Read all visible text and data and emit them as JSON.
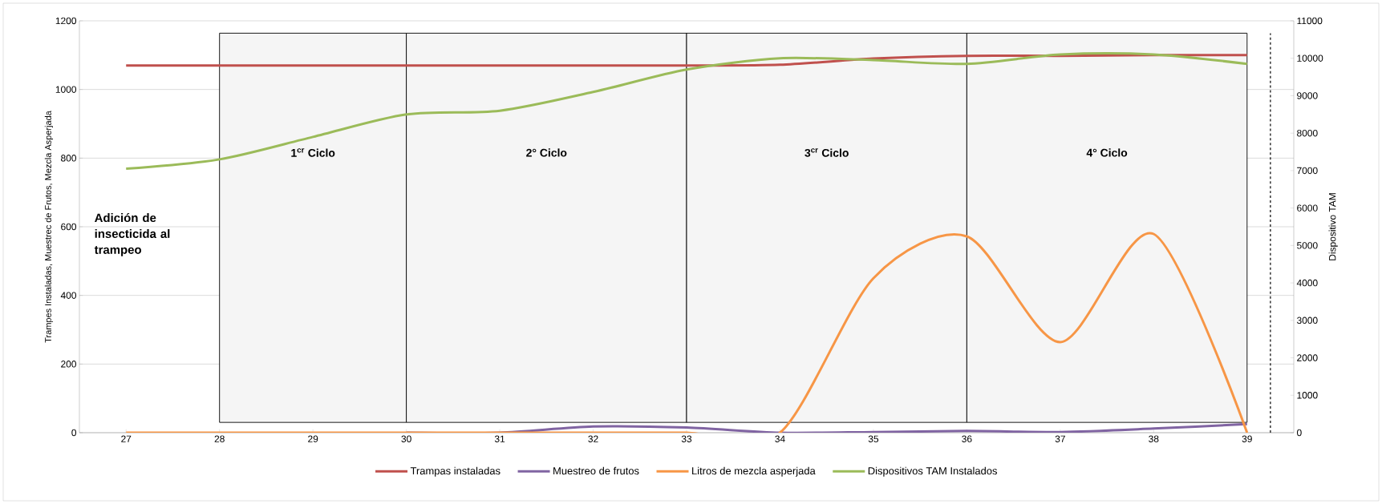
{
  "chart_data": {
    "type": "line",
    "ylabel": "Trampes Instaladas, Muestrec de Frutos, Mezcla Asperjada",
    "y2label": "Dispositivo TAM",
    "x": [
      27,
      28,
      29,
      30,
      31,
      32,
      33,
      34,
      35,
      36,
      37,
      38,
      39
    ],
    "xlim": [
      26.5,
      39.5
    ],
    "xticks": [
      27,
      28,
      29,
      30,
      31,
      32,
      33,
      34,
      35,
      36,
      37,
      38,
      39
    ],
    "ylim": [
      0,
      1200
    ],
    "yticks": [
      0,
      200,
      400,
      600,
      800,
      1000,
      1200
    ],
    "y2lim": [
      0,
      11000
    ],
    "y2ticks": [
      0,
      1000,
      2000,
      3000,
      4000,
      5000,
      6000,
      7000,
      8000,
      9000,
      10000,
      11000
    ],
    "series": [
      {
        "name": "Trampas instaladas",
        "color": "#c0504d",
        "values": [
          1070,
          1070,
          1070,
          1070,
          1070,
          1070,
          1070,
          1072,
          1090,
          1098,
          1098,
          1100,
          1100
        ]
      },
      {
        "name": "Muestreo de frutos",
        "color": "#8064a2",
        "values": [
          null,
          null,
          null,
          0,
          0,
          18,
          15,
          0,
          2,
          5,
          2,
          12,
          25
        ]
      },
      {
        "name": "Litros de mezcla asperjada",
        "color": "#f79646",
        "values": [
          0,
          0,
          0,
          0,
          0,
          0,
          0,
          0,
          450,
          572,
          264,
          579,
          0
        ]
      },
      {
        "name": "Dispositivos TAM Instalados",
        "color": "#9bbb59",
        "axis": "y2",
        "values": [
          7050,
          7300,
          7900,
          8500,
          8600,
          9100,
          9700,
          10000,
          9950,
          9850,
          10100,
          10100,
          9850
        ]
      }
    ],
    "bands": [
      {
        "axis": "x",
        "from": 28,
        "to": 30,
        "label": "1$^{cr}$ Ciclo",
        "color": "#f5f5f5"
      },
      {
        "axis": "x",
        "from": 30,
        "to": 33,
        "label": "2° Ciclo",
        "color": "#f5f5f5"
      },
      {
        "axis": "x",
        "from": 33,
        "to": 36,
        "label": "3$^{cr}$ Ciclo",
        "color": "#f5f5f5"
      },
      {
        "axis": "x",
        "from": 36,
        "to": 39,
        "label": "4° Ciclo",
        "color": "#f5f5f5"
      }
    ],
    "ref_lines": [
      {
        "axis": "x",
        "value": 39.25,
        "color": "#000000",
        "line_style": "dashed"
      }
    ],
    "annotations": [
      "Adición de insecticida al trampeo"
    ],
    "grid": "y",
    "legend": "bottom",
    "marker": "none",
    "line_style": "solid"
  }
}
